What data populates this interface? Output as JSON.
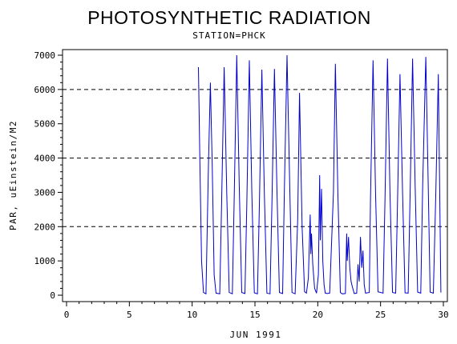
{
  "chart_data": {
    "type": "line",
    "title": "PHOTOSYNTHETIC RADIATION",
    "subtitle": "STATION=PHCK",
    "xlabel": "JUN 1991",
    "ylabel": "PAR, uEinstein/M2",
    "xlim": [
      0,
      30
    ],
    "ylim": [
      0,
      7000
    ],
    "x_ticks": [
      0,
      5,
      10,
      15,
      20,
      25,
      30
    ],
    "y_ticks": [
      0,
      1000,
      2000,
      3000,
      4000,
      5000,
      6000,
      7000
    ],
    "reference_lines": [
      2000,
      4000,
      6000
    ],
    "line_color": "#0000cc",
    "series": [
      {
        "x": [
          10.5,
          10.6,
          10.75,
          10.9,
          11.1,
          11.3,
          11.45,
          11.6,
          11.75,
          11.9,
          12.2,
          12.35,
          12.55,
          12.75,
          12.95,
          13.2,
          13.35,
          13.55,
          13.75,
          13.95,
          14.2,
          14.35,
          14.55,
          14.75,
          14.95,
          15.2,
          15.35,
          15.55,
          15.75,
          15.95,
          16.2,
          16.35,
          16.55,
          16.75,
          16.95,
          17.2,
          17.35,
          17.55,
          17.75,
          17.95,
          18.2,
          18.4,
          18.55,
          18.75,
          18.95,
          19.1,
          19.25,
          19.4,
          19.45,
          19.5,
          19.6,
          19.75,
          19.9,
          20.05,
          20.15,
          20.2,
          20.3,
          20.4,
          20.5,
          20.6,
          20.75,
          20.95,
          21.25,
          21.4,
          21.6,
          21.8,
          21.95,
          22.2,
          22.3,
          22.35,
          22.45,
          22.55,
          22.65,
          22.75,
          22.9,
          23.1,
          23.2,
          23.3,
          23.4,
          23.5,
          23.6,
          23.7,
          23.8,
          24.1,
          24.2,
          24.4,
          24.6,
          24.8,
          25.2,
          25.35,
          25.55,
          25.75,
          25.95,
          26.2,
          26.35,
          26.55,
          26.75,
          26.95,
          27.2,
          27.35,
          27.55,
          27.75,
          27.95,
          28.2,
          28.35,
          28.6,
          28.8,
          28.95,
          29.2,
          29.4,
          29.6,
          29.8
        ],
        "y": [
          6650,
          4200,
          1000,
          80,
          40,
          3800,
          6200,
          3800,
          600,
          60,
          40,
          2800,
          6650,
          3000,
          80,
          40,
          2800,
          7000,
          3200,
          80,
          50,
          2600,
          6850,
          3000,
          70,
          40,
          2600,
          6580,
          2900,
          60,
          40,
          2700,
          6600,
          3100,
          80,
          50,
          3200,
          7000,
          3500,
          80,
          40,
          2200,
          5900,
          2000,
          100,
          60,
          500,
          2350,
          1200,
          1800,
          900,
          200,
          60,
          600,
          3500,
          1600,
          3100,
          1000,
          300,
          60,
          50,
          60,
          3000,
          6750,
          3000,
          80,
          40,
          50,
          1800,
          1000,
          1700,
          800,
          400,
          250,
          50,
          60,
          900,
          400,
          1700,
          800,
          1300,
          300,
          60,
          80,
          2800,
          6850,
          3000,
          100,
          60,
          2800,
          6900,
          3000,
          80,
          60,
          2700,
          6450,
          3000,
          70,
          60,
          2900,
          6900,
          3200,
          90,
          60,
          3200,
          6950,
          3100,
          90,
          60,
          3000,
          6450,
          80
        ]
      }
    ]
  }
}
